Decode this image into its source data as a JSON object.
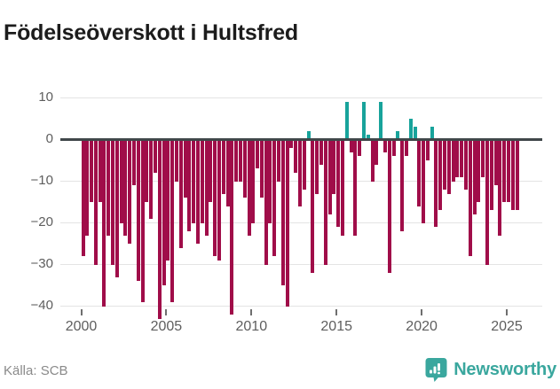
{
  "title": "Födelseöverskott i Hultsfred",
  "footer": {
    "source": "Källa: SCB",
    "brand_name": "Newsworthy"
  },
  "colors": {
    "negative_bar": "#a00d49",
    "positive_bar": "#18a39b",
    "zero_line": "#40474a",
    "gridline": "#e4e4e4",
    "axis_label": "#5e5e5e",
    "brand_teal": "#3aa79e"
  },
  "chart_data": {
    "type": "bar",
    "title": "Födelseöverskott i Hultsfred",
    "xlabel": "",
    "ylabel": "",
    "frequency": "quarterly",
    "start_year": 2000,
    "start_quarter": 1,
    "x_tick_years": [
      2000,
      2005,
      2010,
      2015,
      2020,
      2025
    ],
    "y_ticks": [
      10,
      0,
      -10,
      -20,
      -30,
      -40
    ],
    "y_tick_labels": [
      "10",
      "0",
      "−10",
      "−20",
      "−30",
      "−40"
    ],
    "ylim": [
      -46,
      12
    ],
    "grid": "horizontal",
    "legend": "none",
    "values": [
      -28,
      -23,
      -15,
      -30,
      -15,
      -40,
      -23,
      -30,
      -33,
      -20,
      -23,
      -25,
      -11,
      -34,
      -39,
      -15,
      -19,
      -8,
      -43,
      -35,
      -29,
      -39,
      -10,
      -26,
      -14,
      -22,
      -20,
      -25,
      -20,
      -23,
      -15,
      -28,
      -29,
      -13,
      -16,
      -42,
      -10,
      -10,
      -14,
      -23,
      -20,
      -7,
      -14,
      -30,
      -20,
      -28,
      -10,
      -35,
      -40,
      -2,
      -8,
      -16,
      -12,
      2,
      -32,
      -13,
      -6,
      -30,
      -18,
      -13,
      -21,
      -23,
      9,
      -3,
      -23,
      -4,
      9,
      1,
      -10,
      -6,
      9,
      -3,
      -32,
      -4,
      2,
      -22,
      -4,
      5,
      3,
      -16,
      -20,
      -5,
      3,
      -21,
      -17,
      -12,
      -13,
      -10,
      -9,
      -9,
      -12,
      -28,
      -18,
      -15,
      -9,
      -30,
      -17,
      -11,
      -23,
      -15,
      -15,
      -17,
      -17
    ]
  }
}
